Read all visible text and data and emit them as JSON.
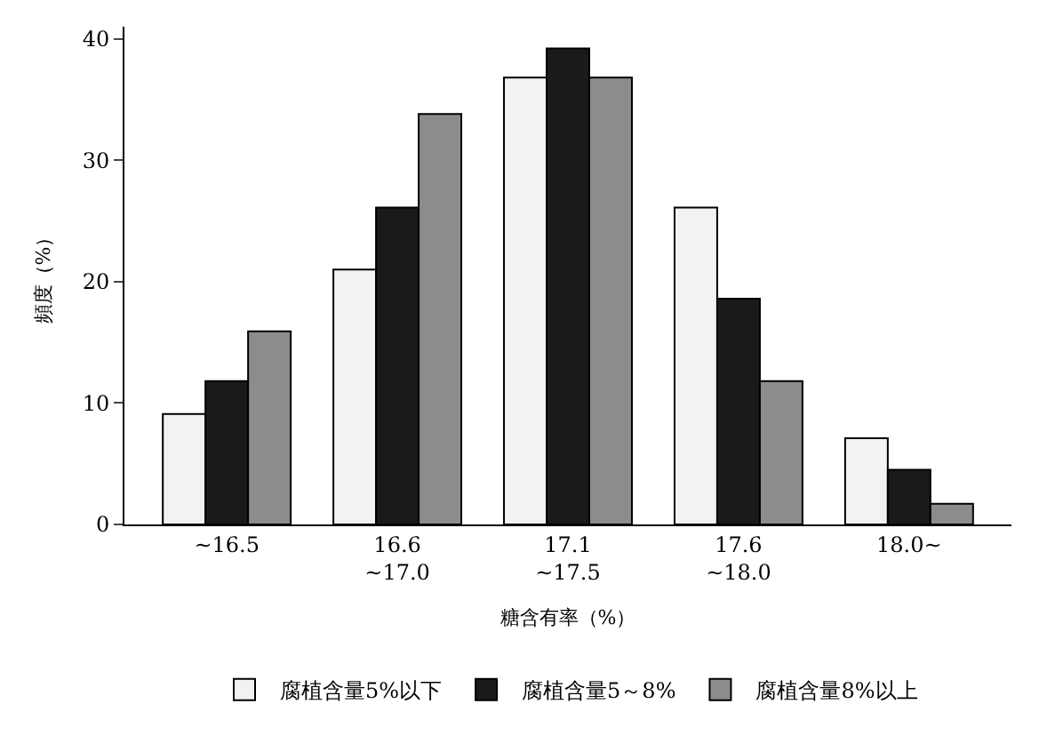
{
  "chart_data": {
    "type": "bar",
    "xlabel": "糖含有率（%）",
    "ylabel": "頻度（%）",
    "categories": [
      "~16.5",
      "16.6\n~17.0",
      "17.1\n~17.5",
      "17.6\n~18.0",
      "18.0~"
    ],
    "series": [
      {
        "name": "腐植含量5%以下",
        "color": "#f2f2f2",
        "values": [
          9.1,
          21.0,
          36.8,
          26.1,
          7.1
        ]
      },
      {
        "name": "腐植含量5～8%",
        "color": "#1a1a1a",
        "values": [
          11.8,
          26.1,
          39.2,
          18.6,
          4.5
        ]
      },
      {
        "name": "腐植含量8%以上",
        "color": "#8c8c8c",
        "values": [
          15.9,
          33.8,
          36.8,
          11.8,
          1.7
        ]
      }
    ],
    "ylim": [
      0,
      41
    ],
    "yticks": [
      0,
      10,
      20,
      30,
      40
    ],
    "legend": "bottom"
  }
}
